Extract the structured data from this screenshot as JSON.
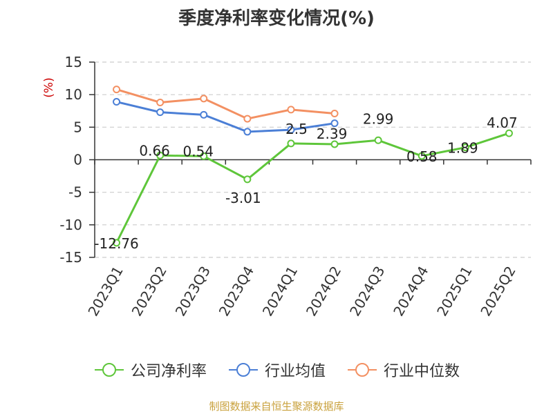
{
  "chart_data": {
    "type": "line",
    "title": "季度净利率变化情况(%)",
    "ylabel": "(%)",
    "categories": [
      "2023Q1",
      "2023Q2",
      "2023Q3",
      "2023Q4",
      "2024Q1",
      "2024Q2",
      "2024Q3",
      "2024Q4",
      "2025Q1",
      "2025Q2"
    ],
    "ylim": [
      -15,
      15
    ],
    "yticks": [
      15,
      10,
      5,
      0,
      -5,
      -10,
      -15
    ],
    "grid": true,
    "legend_position": "bottom",
    "series": [
      {
        "name": "公司净利率",
        "color": "#5ec63a",
        "values": [
          -12.76,
          0.66,
          0.54,
          -3.01,
          2.5,
          2.39,
          2.99,
          0.58,
          1.89,
          4.07
        ],
        "labels": [
          "-12.76",
          "0.66",
          "0.54",
          "-3.01",
          "2.5",
          "2.39",
          "2.99",
          "0.58",
          "1.89",
          "4.07"
        ]
      },
      {
        "name": "行业均值",
        "color": "#4b7fd6",
        "values": [
          8.9,
          7.3,
          6.9,
          4.3,
          4.6,
          5.6,
          null,
          null,
          null,
          null
        ]
      },
      {
        "name": "行业中位数",
        "color": "#f39062",
        "values": [
          10.8,
          8.8,
          9.4,
          6.3,
          7.7,
          7.1,
          null,
          null,
          null,
          null
        ]
      }
    ]
  },
  "source": "制图数据来自恒生聚源数据库"
}
